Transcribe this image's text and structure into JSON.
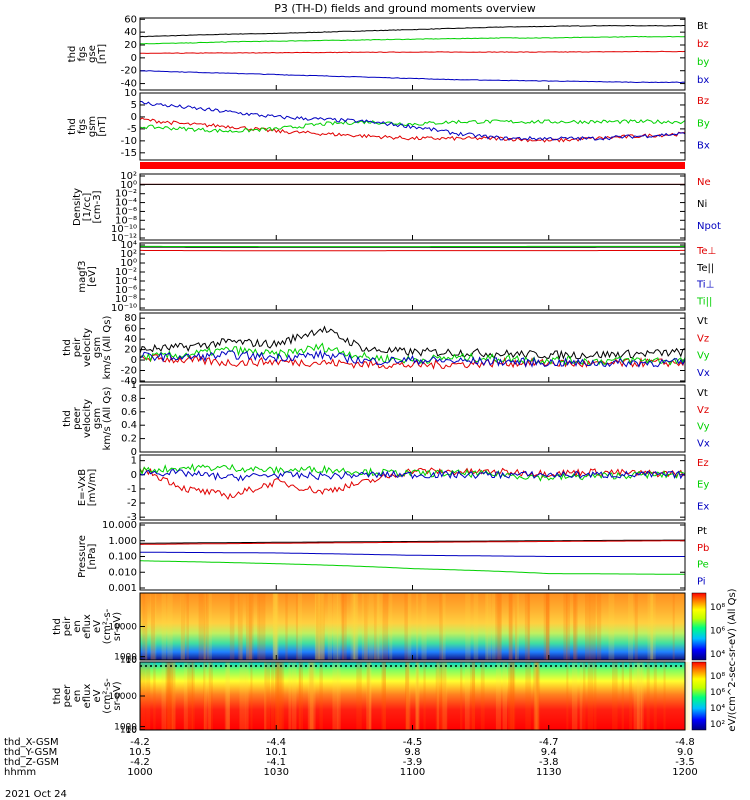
{
  "title": "P3 (TH-D) fields and ground moments overview",
  "date_label": "2021 Oct 24",
  "colors": {
    "black": "#000000",
    "red": "#e00000",
    "green": "#00d000",
    "blue": "#0000c0",
    "red_bar": "#ff0000"
  },
  "chart_data": [
    {
      "id": "fgs_gse",
      "type": "line",
      "ylabel": [
        "thd",
        "fgs",
        "gse",
        "[nT]"
      ],
      "ylim": [
        -50,
        62
      ],
      "yticks": [
        -40,
        -20,
        0,
        20,
        40,
        60
      ],
      "legend_placement": "right",
      "series": [
        {
          "name": "Bt",
          "color": "black",
          "x": [
            1000,
            1010,
            1020,
            1030,
            1040,
            1050,
            1100,
            1110,
            1120,
            1130,
            1140,
            1150,
            1200
          ],
          "values": [
            33,
            35,
            37,
            38,
            40,
            42,
            44,
            46,
            48,
            49,
            50,
            50,
            50
          ]
        },
        {
          "name": "bz",
          "color": "red",
          "x": [
            1000,
            1030,
            1100,
            1130,
            1200
          ],
          "values": [
            7,
            8,
            9,
            9,
            10
          ]
        },
        {
          "name": "by",
          "color": "green",
          "x": [
            1000,
            1010,
            1020,
            1030,
            1040,
            1050,
            1100,
            1110,
            1120,
            1130,
            1140,
            1150,
            1200
          ],
          "values": [
            22,
            23,
            25,
            26,
            27,
            28,
            29,
            30,
            31,
            31,
            32,
            33,
            33
          ]
        },
        {
          "name": "bx",
          "color": "blue",
          "x": [
            1000,
            1010,
            1020,
            1030,
            1040,
            1050,
            1100,
            1110,
            1120,
            1130,
            1140,
            1150,
            1200
          ],
          "values": [
            -20,
            -22,
            -24,
            -26,
            -28,
            -30,
            -32,
            -34,
            -35,
            -36,
            -37,
            -38,
            -38
          ]
        }
      ]
    },
    {
      "id": "fgs_gsm",
      "type": "line",
      "ylabel": [
        "thd",
        "fgs",
        "gsm",
        "[nT]"
      ],
      "ylim": [
        -18,
        10
      ],
      "yticks": [
        -15,
        -10,
        -5,
        0,
        5,
        10
      ],
      "legend_placement": "right",
      "series": [
        {
          "name": "Bz",
          "color": "red",
          "x": [
            1000,
            1010,
            1020,
            1030,
            1040,
            1050,
            1100,
            1110,
            1120,
            1130,
            1140,
            1150,
            1200
          ],
          "values": [
            -1,
            -3,
            -4,
            -6,
            -7,
            -8,
            -9,
            -9,
            -9,
            -10,
            -9,
            -8,
            -7
          ]
        },
        {
          "name": "By",
          "color": "green",
          "x": [
            1000,
            1010,
            1020,
            1030,
            1040,
            1050,
            1100,
            1110,
            1120,
            1130,
            1140,
            1150,
            1200
          ],
          "values": [
            -4,
            -5,
            -6,
            -5,
            -3,
            -2,
            -3,
            -2,
            -2,
            -2,
            -2,
            -2,
            -2
          ]
        },
        {
          "name": "Bx",
          "color": "blue",
          "x": [
            1000,
            1010,
            1020,
            1030,
            1040,
            1050,
            1100,
            1110,
            1120,
            1130,
            1140,
            1150,
            1200
          ],
          "values": [
            6,
            4,
            2,
            0,
            -1,
            -2,
            -4,
            -7,
            -9,
            -9,
            -9,
            -8,
            -7
          ]
        }
      ]
    },
    {
      "id": "density",
      "type": "line",
      "log_scale": true,
      "ylabel": [
        "Density",
        "[1/cc]",
        "[cm-3]"
      ],
      "ylim": [
        1e-13,
        1000.0
      ],
      "yticks": [
        "10²",
        "10⁰",
        "10⁻²",
        "10⁻⁴",
        "10⁻⁶",
        "10⁻⁸",
        "10⁻¹⁰",
        "10⁻¹²"
      ],
      "legend_placement": "right",
      "series": [
        {
          "name": "Ne",
          "color": "red",
          "x": [
            1000,
            1030,
            1100,
            1130,
            1200
          ],
          "values": [
            3,
            3,
            3,
            3,
            3
          ]
        },
        {
          "name": "Ni",
          "color": "black",
          "x": [
            1000,
            1030,
            1100,
            1130,
            1200
          ],
          "values": [
            3,
            3,
            3,
            3,
            3
          ]
        },
        {
          "name": "Npot",
          "color": "blue",
          "x": [],
          "values": []
        }
      ]
    },
    {
      "id": "temperature",
      "type": "line",
      "log_scale": true,
      "ylabel": [
        "magf3",
        "[eV]"
      ],
      "ylim": [
        1e-13,
        100000.0
      ],
      "yticks": [
        "10⁴",
        "10²",
        "10⁰",
        "10⁻²",
        "10⁻⁴",
        "10⁻⁶",
        "10⁻⁸",
        "10⁻¹⁰"
      ],
      "legend_placement": "right",
      "series": [
        {
          "name": "Te⊥",
          "color": "red",
          "x": [
            1000,
            1030,
            1100,
            1130,
            1200
          ],
          "values": [
            1000,
            800,
            900,
            900,
            1000
          ]
        },
        {
          "name": "Te||",
          "color": "black",
          "x": [
            1000,
            1030,
            1100,
            1130,
            1200
          ],
          "values": [
            8000,
            7000,
            7000,
            7500,
            8000
          ]
        },
        {
          "name": "Ti⊥",
          "color": "blue",
          "x": [],
          "values": []
        },
        {
          "name": "Ti||",
          "color": "green",
          "x": [
            1000,
            1030,
            1100,
            1130,
            1200
          ],
          "values": [
            12000,
            11000,
            11000,
            12000,
            12000
          ]
        }
      ]
    },
    {
      "id": "peir_velocity",
      "type": "line",
      "ylabel": [
        "thd",
        "peir",
        "velocity",
        "gsm",
        "km/s (All Qs)"
      ],
      "ylim": [
        -42,
        90
      ],
      "yticks": [
        -40,
        -20,
        0,
        20,
        40,
        60,
        80
      ],
      "legend_placement": "right",
      "series": [
        {
          "name": "Vt",
          "color": "black",
          "x": [
            1000,
            1010,
            1020,
            1030,
            1040,
            1050,
            1100,
            1110,
            1120,
            1130,
            1140,
            1150,
            1200
          ],
          "values": [
            20,
            25,
            35,
            30,
            60,
            20,
            15,
            15,
            12,
            10,
            10,
            12,
            15
          ]
        },
        {
          "name": "Vz",
          "color": "red",
          "x": [
            1000,
            1010,
            1020,
            1030,
            1040,
            1050,
            1100,
            1110,
            1120,
            1130,
            1140,
            1150,
            1200
          ],
          "values": [
            5,
            0,
            -5,
            -3,
            -5,
            -8,
            -10,
            -8,
            -5,
            -6,
            -8,
            -5,
            -5
          ]
        },
        {
          "name": "Vy",
          "color": "green",
          "x": [
            1000,
            1010,
            1020,
            1030,
            1040,
            1050,
            1100,
            1110,
            1120,
            1130,
            1140,
            1150,
            1200
          ],
          "values": [
            5,
            10,
            20,
            10,
            25,
            5,
            0,
            5,
            3,
            0,
            -2,
            0,
            -2
          ]
        },
        {
          "name": "Vx",
          "color": "blue",
          "x": [
            1000,
            1010,
            1020,
            1030,
            1040,
            1050,
            1100,
            1110,
            1120,
            1130,
            1140,
            1150,
            1200
          ],
          "values": [
            8,
            5,
            10,
            5,
            10,
            -2,
            0,
            -2,
            -3,
            -5,
            -6,
            -5,
            -5
          ]
        }
      ]
    },
    {
      "id": "peer_velocity",
      "type": "line",
      "ylabel": [
        "thd",
        "peer",
        "velocity",
        "gsm",
        "km/s (All Qs)"
      ],
      "ylim": [
        0,
        1
      ],
      "yticks": [
        0.0,
        0.2,
        0.4,
        0.6,
        0.8,
        1.0
      ],
      "legend_placement": "right",
      "series": [
        {
          "name": "Vt",
          "color": "black",
          "x": [],
          "values": []
        },
        {
          "name": "Vz",
          "color": "red",
          "x": [],
          "values": []
        },
        {
          "name": "Vy",
          "color": "green",
          "x": [],
          "values": []
        },
        {
          "name": "Vx",
          "color": "blue",
          "x": [],
          "values": []
        }
      ]
    },
    {
      "id": "efield",
      "type": "line",
      "ylabel": [
        "E=-VxB",
        "[mV/m]"
      ],
      "ylim": [
        -3.2,
        1.4
      ],
      "yticks": [
        -3,
        -2,
        -1,
        0,
        1
      ],
      "legend_placement": "right",
      "series": [
        {
          "name": "Ez",
          "color": "red",
          "x": [
            1000,
            1010,
            1020,
            1030,
            1040,
            1050,
            1100,
            1110,
            1120,
            1130,
            1140,
            1150,
            1200
          ],
          "values": [
            0.5,
            -1.0,
            -1.5,
            -0.5,
            -1.2,
            -0.5,
            0.3,
            0.2,
            0.2,
            0.1,
            0.2,
            0.1,
            0.1
          ]
        },
        {
          "name": "Ey",
          "color": "green",
          "x": [
            1000,
            1010,
            1020,
            1030,
            1040,
            1050,
            1100,
            1110,
            1120,
            1130,
            1140,
            1150,
            1200
          ],
          "values": [
            0.3,
            0.5,
            0.5,
            0.3,
            0.4,
            0.2,
            0.1,
            0.1,
            0.0,
            -0.2,
            -0.1,
            0.0,
            0.0
          ]
        },
        {
          "name": "Ex",
          "color": "blue",
          "x": [
            1000,
            1010,
            1020,
            1030,
            1040,
            1050,
            1100,
            1110,
            1120,
            1130,
            1140,
            1150,
            1200
          ],
          "values": [
            0.2,
            0.1,
            -0.2,
            0.0,
            -0.1,
            0.0,
            0.0,
            0.0,
            0.0,
            0.0,
            0.0,
            0.0,
            0.0
          ]
        }
      ]
    },
    {
      "id": "pressure",
      "type": "line",
      "log_scale": true,
      "ylabel": [
        "Pressure",
        "[nPa]"
      ],
      "ylim": [
        0.001,
        12
      ],
      "yticks": [
        "10.000",
        "1.000",
        "0.100",
        "0.010",
        "0.001"
      ],
      "legend_placement": "right",
      "series": [
        {
          "name": "Pt",
          "color": "black",
          "x": [
            1000,
            1030,
            1100,
            1130,
            1200
          ],
          "values": [
            0.7,
            0.8,
            0.9,
            1.0,
            1.1
          ]
        },
        {
          "name": "Pb",
          "color": "red",
          "x": [
            1000,
            1030,
            1100,
            1130,
            1200
          ],
          "values": [
            0.6,
            0.7,
            0.8,
            0.9,
            1.0
          ]
        },
        {
          "name": "Pe",
          "color": "green",
          "x": [
            1000,
            1030,
            1100,
            1130,
            1200
          ],
          "values": [
            0.06,
            0.04,
            0.02,
            0.01,
            0.009
          ]
        },
        {
          "name": "Pi",
          "color": "blue",
          "x": [
            1000,
            1030,
            1100,
            1130,
            1200
          ],
          "values": [
            0.2,
            0.18,
            0.13,
            0.11,
            0.11
          ]
        }
      ]
    },
    {
      "id": "peir_spec",
      "type": "heatmap",
      "ylabel": [
        "thd",
        "peir",
        "en",
        "eflux",
        "eV",
        "(cm²-s-",
        "sr-eV)"
      ],
      "ylim": [
        5,
        20000
      ],
      "yticks": [
        10000,
        1000,
        100,
        10
      ],
      "colorbar_ticks": [
        "10⁸",
        "10⁶",
        "10⁴"
      ],
      "colorbar_label": "eV/(cm^2-sec-sr-eV) (All Qs)"
    },
    {
      "id": "peer_spec",
      "type": "heatmap",
      "ylabel": [
        "thd",
        "peer",
        "en",
        "eflux",
        "eV",
        "(cm²-s-",
        "sr-eV)"
      ],
      "ylim": [
        5,
        20000
      ],
      "yticks": [
        10000,
        1000,
        100,
        10
      ],
      "colorbar_ticks": [
        "10⁸",
        "10⁶",
        "10⁴",
        "10²"
      ],
      "colorbar_label": "eV/(cm^2-sec-sr-eV)"
    }
  ],
  "x_axis": {
    "times": [
      1000,
      1030,
      1100,
      1130,
      1200
    ],
    "row_labels": [
      "thd_X-GSM",
      "thd_Y-GSM",
      "thd_Z-GSM",
      "hhmm"
    ],
    "rows": [
      [
        "-4.2",
        "-4.4",
        "-4.5",
        "-4.7",
        "-4.8"
      ],
      [
        "10.5",
        "10.1",
        "9.8",
        "9.4",
        "9.0"
      ],
      [
        "-4.2",
        "-4.1",
        "-3.9",
        "-3.8",
        "-3.5"
      ],
      [
        "1000",
        "1030",
        "1100",
        "1130",
        "1200"
      ]
    ]
  }
}
